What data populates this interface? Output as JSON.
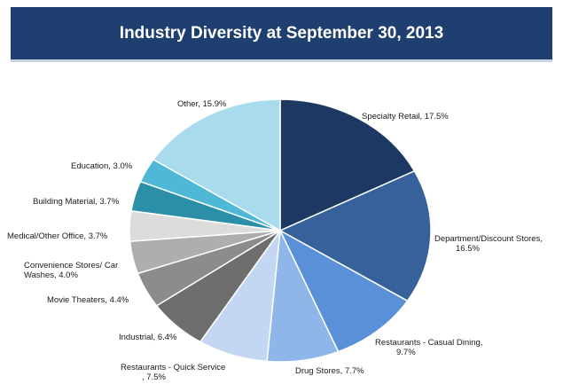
{
  "chart_data": {
    "type": "pie",
    "title": "Industry Diversity at September 30, 2013",
    "slices": [
      {
        "label_lines": [
          "Specialty Retail,  17.5%"
        ],
        "value": 17.5,
        "color": "#1d3863"
      },
      {
        "label_lines": [
          "Department/Discount Stores,",
          "16.5%"
        ],
        "value": 16.5,
        "color": "#36619a"
      },
      {
        "label_lines": [
          "Restaurants - Casual Dining,",
          "9.7%"
        ],
        "value": 9.7,
        "color": "#5a90d8"
      },
      {
        "label_lines": [
          "Drug Stores, 7.7%"
        ],
        "value": 7.7,
        "color": "#8fb6e8"
      },
      {
        "label_lines": [
          "Restaurants - Quick Service",
          ", 7.5%"
        ],
        "value": 7.5,
        "color": "#c3d7f2"
      },
      {
        "label_lines": [
          "Industrial, 6.4%"
        ],
        "value": 6.4,
        "color": "#6e6e6e"
      },
      {
        "label_lines": [
          "Movie Theaters, 4.4%"
        ],
        "value": 4.4,
        "color": "#8c8c8c"
      },
      {
        "label_lines": [
          "Convenience Stores/ Car",
          "Washes, 4.0%"
        ],
        "value": 4.0,
        "color": "#aeaeae"
      },
      {
        "label_lines": [
          "Medical/Other Office, 3.7%"
        ],
        "value": 3.7,
        "color": "#dcdcdc"
      },
      {
        "label_lines": [
          "Building Material, 3.7%"
        ],
        "value": 3.7,
        "color": "#2b8fa8"
      },
      {
        "label_lines": [
          "Education, 3.0%"
        ],
        "value": 3.0,
        "color": "#4fb8d6"
      },
      {
        "label_lines": [
          "Other, 15.9%"
        ],
        "value": 15.9,
        "color": "#a8dcec"
      }
    ]
  }
}
